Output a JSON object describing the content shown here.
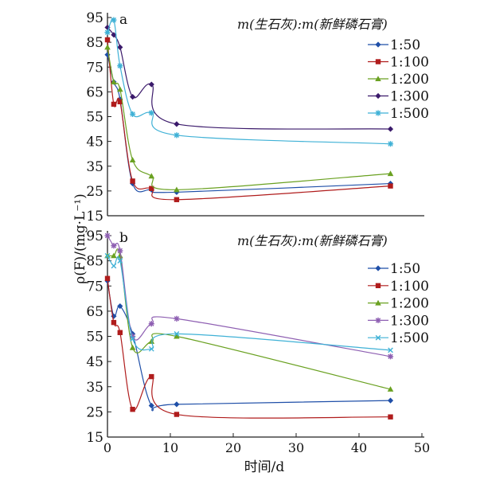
{
  "chart_data": [
    {
      "panel_label": "a",
      "type": "line",
      "title": "",
      "legend_title": "m(生石灰):m(新鲜磷石膏)",
      "legend_placement": "top-right",
      "ylim": [
        15,
        95
      ],
      "yticks": [
        15,
        25,
        35,
        45,
        55,
        65,
        75,
        85,
        95
      ],
      "xlim": [
        0,
        50
      ],
      "grid": false,
      "series": [
        {
          "name": "1:50",
          "color": "#1f4fa8",
          "marker": "diamond",
          "x": [
            0,
            1,
            2,
            4,
            7,
            11,
            45
          ],
          "y": [
            80,
            69,
            62,
            28,
            25.5,
            24.5,
            28
          ]
        },
        {
          "name": "1:100",
          "color": "#b01c1c",
          "marker": "square",
          "x": [
            0,
            1,
            2,
            4,
            7,
            11,
            45
          ],
          "y": [
            86,
            60,
            61,
            29,
            26,
            21.5,
            27
          ]
        },
        {
          "name": "1:200",
          "color": "#6aa121",
          "marker": "triangle",
          "x": [
            0,
            1,
            2,
            4,
            7,
            11,
            45
          ],
          "y": [
            83,
            69,
            66,
            37.5,
            31,
            25.5,
            32
          ]
        },
        {
          "name": "1:300",
          "color": "#3b1a6b",
          "marker": "diamond",
          "x": [
            0,
            1,
            2,
            4,
            7,
            11,
            45
          ],
          "y": [
            91,
            88,
            83,
            63,
            68,
            52,
            50
          ]
        },
        {
          "name": "1:500",
          "color": "#3fb1d6",
          "marker": "star",
          "x": [
            0,
            1,
            2,
            4,
            7,
            11,
            45
          ],
          "y": [
            89,
            94,
            75.5,
            56,
            56.5,
            47.5,
            44
          ]
        }
      ]
    },
    {
      "panel_label": "b",
      "type": "line",
      "title": "",
      "legend_title": "m(生石灰):m(新鲜磷石膏)",
      "legend_placement": "top-right",
      "xlabel": "时间/d",
      "ylim": [
        15,
        95
      ],
      "yticks": [
        15,
        25,
        35,
        45,
        55,
        65,
        75,
        85,
        95
      ],
      "xlim": [
        0,
        50
      ],
      "xticks": [
        0,
        10,
        20,
        30,
        40,
        50
      ],
      "grid": false,
      "series": [
        {
          "name": "1:50",
          "color": "#1f4fa8",
          "marker": "diamond",
          "x": [
            0,
            1,
            2,
            4,
            7,
            11,
            45
          ],
          "y": [
            77,
            63,
            67,
            56,
            27.5,
            28,
            29.5
          ]
        },
        {
          "name": "1:100",
          "color": "#b01c1c",
          "marker": "square",
          "x": [
            0,
            1,
            2,
            4,
            7,
            11,
            45
          ],
          "y": [
            78,
            60.5,
            56.5,
            26,
            39,
            24,
            23
          ]
        },
        {
          "name": "1:200",
          "color": "#6aa121",
          "marker": "triangle",
          "x": [
            0,
            1,
            2,
            4,
            7,
            11,
            45
          ],
          "y": [
            87,
            87,
            87,
            50.5,
            53,
            55,
            34
          ]
        },
        {
          "name": "1:300",
          "color": "#8e5fb2",
          "marker": "star",
          "x": [
            0,
            1,
            2,
            4,
            7,
            11,
            45
          ],
          "y": [
            95,
            91,
            89,
            55,
            60,
            62,
            47
          ]
        },
        {
          "name": "1:500",
          "color": "#3fb1d6",
          "marker": "x",
          "x": [
            0,
            1,
            2,
            4,
            7,
            11,
            45
          ],
          "y": [
            87,
            83,
            85,
            54,
            50,
            56,
            49.5
          ]
        }
      ]
    }
  ],
  "shared": {
    "ylabel": "ρ(F)/(mg·L⁻¹)",
    "xlabel": "时间/d"
  }
}
